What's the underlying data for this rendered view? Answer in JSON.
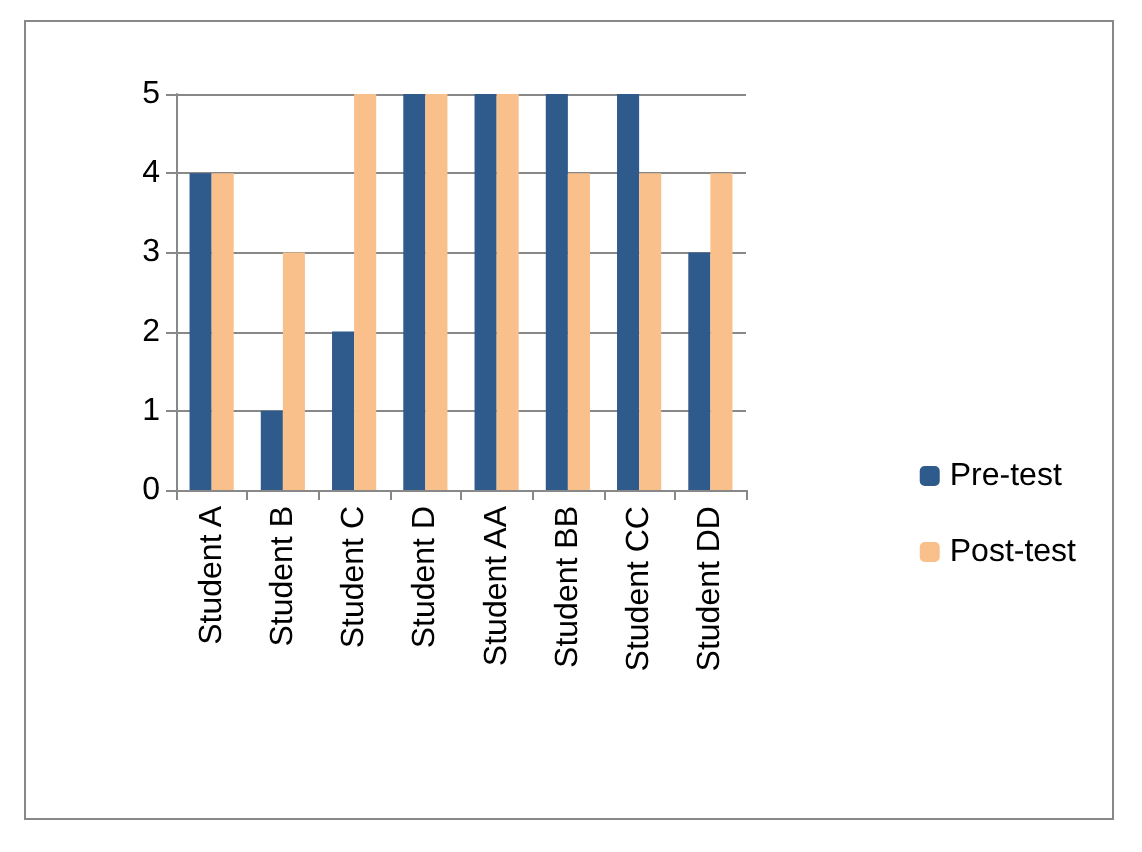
{
  "chart_data": {
    "type": "bar",
    "categories": [
      "Student A",
      "Student B",
      "Student C",
      "Student D",
      "Student AA",
      "Student BB",
      "Student CC",
      "Student DD"
    ],
    "series": [
      {
        "name": "Pre-test",
        "color": "#2f5a8c",
        "values": [
          4,
          1,
          2,
          5,
          5,
          5,
          5,
          3
        ]
      },
      {
        "name": "Post-test",
        "color": "#f9c08c",
        "values": [
          4,
          3,
          5,
          5,
          5,
          4,
          4,
          4
        ]
      }
    ],
    "ylim": [
      0,
      5
    ],
    "yticks": [
      0,
      1,
      2,
      3,
      4,
      5
    ],
    "grid": "y",
    "legend": "right"
  }
}
